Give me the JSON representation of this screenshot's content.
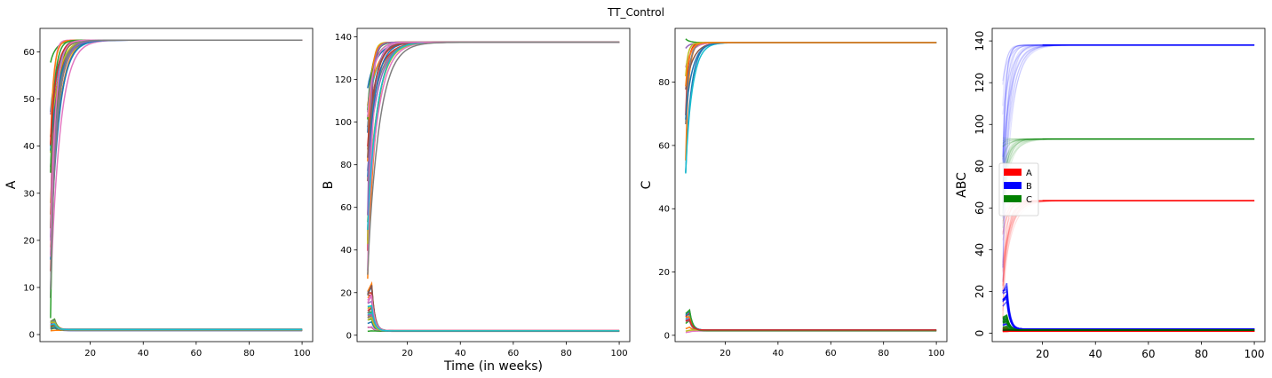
{
  "figure": {
    "title": "TT_Control"
  },
  "chart_data": [
    {
      "type": "line",
      "panel": "A",
      "xlabel": "",
      "ylabel": "A",
      "xlim": [
        1,
        104
      ],
      "ylim": [
        -1.5,
        65
      ],
      "xticks": [
        20,
        40,
        60,
        80,
        100
      ],
      "yticks": [
        0,
        10,
        20,
        30,
        40,
        50,
        60
      ],
      "x_range": [
        5,
        100
      ],
      "high_plateau": 62.5,
      "low_plateau": 1.0,
      "high_start_min": 3,
      "high_start_max": 58,
      "high_settle_weeks": [
        9,
        22
      ],
      "low_start_min": 0.8,
      "low_start_max": 2.8,
      "high_curves": 28,
      "low_curves": 30,
      "colors": [
        "#1f77b4",
        "#ff7f0e",
        "#2ca02c",
        "#d62728",
        "#9467bd",
        "#8c564b",
        "#e377c2",
        "#7f7f7f",
        "#bcbd22",
        "#17becf"
      ],
      "grid": false
    },
    {
      "type": "line",
      "panel": "B",
      "xlabel": "Time (in weeks)",
      "ylabel": "B",
      "xlim": [
        1,
        104
      ],
      "ylim": [
        -3,
        144
      ],
      "xticks": [
        20,
        40,
        60,
        80,
        100
      ],
      "yticks": [
        0,
        20,
        40,
        60,
        80,
        100,
        120,
        140
      ],
      "x_range": [
        5,
        100
      ],
      "high_plateau": 137.5,
      "low_plateau": 2.0,
      "high_start_min": 24,
      "high_start_max": 125,
      "high_settle_weeks": [
        9,
        25
      ],
      "low_start_min": 1,
      "low_start_max": 21,
      "high_curves": 28,
      "low_curves": 30,
      "colors": [
        "#1f77b4",
        "#ff7f0e",
        "#2ca02c",
        "#d62728",
        "#9467bd",
        "#8c564b",
        "#e377c2",
        "#7f7f7f",
        "#bcbd22",
        "#17becf"
      ],
      "grid": false
    },
    {
      "type": "line",
      "panel": "C",
      "xlabel": "",
      "ylabel": "C",
      "xlim": [
        1,
        104
      ],
      "ylim": [
        -2,
        97
      ],
      "xticks": [
        20,
        40,
        60,
        80,
        100
      ],
      "yticks": [
        0,
        20,
        40,
        60,
        80
      ],
      "x_range": [
        5,
        100
      ],
      "high_plateau": 92.5,
      "low_plateau": 1.5,
      "high_start_min": 50,
      "high_start_max": 94,
      "high_settle_weeks": [
        9,
        18
      ],
      "low_start_min": 0.5,
      "low_start_max": 8.5,
      "high_curves": 12,
      "low_curves": 14,
      "colors": [
        "#1f77b4",
        "#ff7f0e",
        "#2ca02c",
        "#d62728",
        "#9467bd",
        "#8c564b",
        "#e377c2",
        "#7f7f7f",
        "#bcbd22",
        "#17becf"
      ],
      "grid": false
    },
    {
      "type": "line",
      "panel": "ABC",
      "xlabel": "",
      "ylabel": "ABC",
      "xlim": [
        1,
        104
      ],
      "ylim": [
        -4,
        146
      ],
      "xticks": [
        20,
        40,
        60,
        80,
        100
      ],
      "yticks": [
        0,
        20,
        40,
        60,
        80,
        100,
        120,
        140
      ],
      "y_tick_rotation": -90,
      "legend": {
        "placement": "center-left",
        "entries": [
          {
            "label": "A",
            "color": "#ff0000"
          },
          {
            "label": "B",
            "color": "#0000ff"
          },
          {
            "label": "C",
            "color": "#008000"
          }
        ]
      },
      "series": [
        {
          "name": "A",
          "color": "#ff0000",
          "high_plateau": 63.5,
          "low_plateau": 1.0,
          "high_start_min": 3,
          "high_start_max": 58,
          "low_start_min": 0.8,
          "low_start_max": 2.8
        },
        {
          "name": "B",
          "color": "#0000ff",
          "high_plateau": 138.0,
          "low_plateau": 2.0,
          "high_start_min": 24,
          "high_start_max": 125,
          "low_start_min": 1,
          "low_start_max": 21
        },
        {
          "name": "C",
          "color": "#008000",
          "high_plateau": 93.0,
          "low_plateau": 1.5,
          "high_start_min": 50,
          "high_start_max": 94,
          "low_start_min": 0.5,
          "low_start_max": 8.5
        }
      ],
      "x_range": [
        5,
        100
      ],
      "grid": false
    }
  ]
}
